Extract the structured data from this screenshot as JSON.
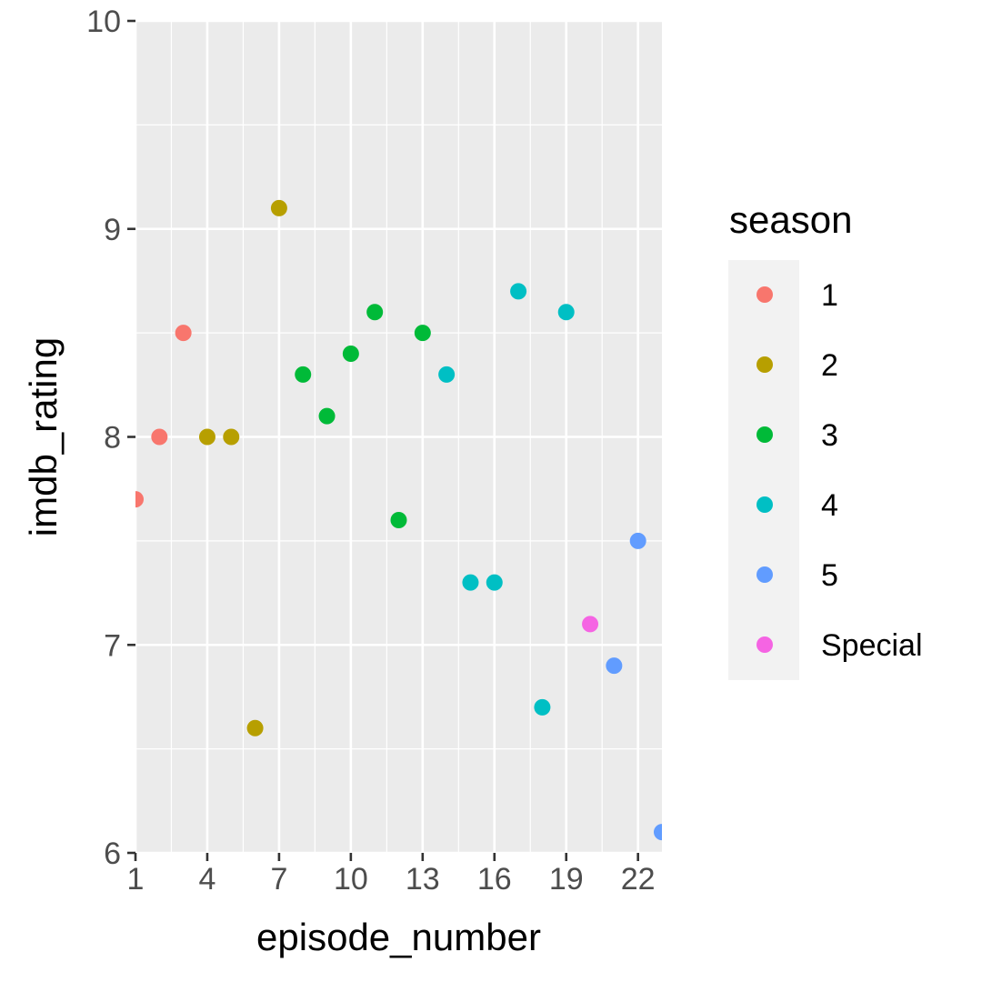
{
  "chart_data": {
    "type": "scatter",
    "xlabel": "episode_number",
    "ylabel": "imdb_rating",
    "xlim": [
      1,
      23
    ],
    "ylim": [
      6,
      10
    ],
    "x_ticks": [
      1,
      4,
      7,
      10,
      13,
      16,
      19,
      22
    ],
    "y_ticks": [
      6,
      7,
      8,
      9,
      10
    ],
    "grid": true,
    "legend": {
      "title": "season",
      "position": "right",
      "entries": [
        {
          "label": "1",
          "color": "#F8766D"
        },
        {
          "label": "2",
          "color": "#B79F00"
        },
        {
          "label": "3",
          "color": "#00BA38"
        },
        {
          "label": "4",
          "color": "#00BFC4"
        },
        {
          "label": "5",
          "color": "#619CFF"
        },
        {
          "label": "Special",
          "color": "#F564E3"
        }
      ]
    },
    "series": [
      {
        "name": "1",
        "color": "#F8766D",
        "points": [
          [
            1,
            7.7
          ],
          [
            2,
            8.0
          ],
          [
            3,
            8.5
          ]
        ]
      },
      {
        "name": "2",
        "color": "#B79F00",
        "points": [
          [
            4,
            8.0
          ],
          [
            5,
            8.0
          ],
          [
            6,
            6.6
          ],
          [
            7,
            9.1
          ]
        ]
      },
      {
        "name": "3",
        "color": "#00BA38",
        "points": [
          [
            8,
            8.3
          ],
          [
            9,
            8.1
          ],
          [
            10,
            8.4
          ],
          [
            11,
            8.6
          ],
          [
            12,
            7.6
          ],
          [
            13,
            8.5
          ]
        ]
      },
      {
        "name": "4",
        "color": "#00BFC4",
        "points": [
          [
            14,
            8.3
          ],
          [
            15,
            7.3
          ],
          [
            16,
            7.3
          ],
          [
            17,
            8.7
          ],
          [
            18,
            6.7
          ],
          [
            19,
            8.6
          ]
        ]
      },
      {
        "name": "5",
        "color": "#619CFF",
        "points": [
          [
            21,
            6.9
          ],
          [
            22,
            7.5
          ],
          [
            23,
            6.1
          ]
        ]
      },
      {
        "name": "Special",
        "color": "#F564E3",
        "points": [
          [
            20,
            7.1
          ]
        ]
      }
    ]
  },
  "style": {
    "panel_background": "#EBEBEB",
    "grid_color": "#FFFFFF",
    "legend_key_background": "#F2F2F2",
    "tick_color": "#333333"
  }
}
